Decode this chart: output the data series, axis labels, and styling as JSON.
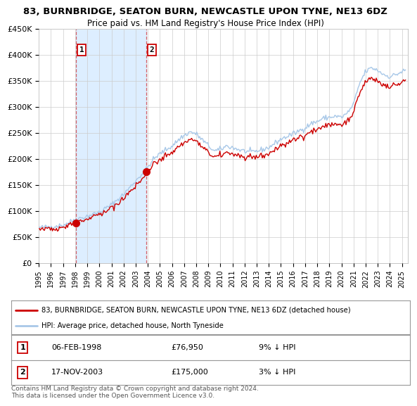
{
  "title": "83, BURNBRIDGE, SEATON BURN, NEWCASTLE UPON TYNE, NE13 6DZ",
  "subtitle": "Price paid vs. HM Land Registry's House Price Index (HPI)",
  "xlim_start": 1995.0,
  "xlim_end": 2025.5,
  "ylim_min": 0,
  "ylim_max": 450000,
  "yticks": [
    0,
    50000,
    100000,
    150000,
    200000,
    250000,
    300000,
    350000,
    400000,
    450000
  ],
  "ytick_labels": [
    "£0",
    "£50K",
    "£100K",
    "£150K",
    "£200K",
    "£250K",
    "£300K",
    "£350K",
    "£400K",
    "£450K"
  ],
  "xtick_labels": [
    "1995",
    "1996",
    "1997",
    "1998",
    "1999",
    "2000",
    "2001",
    "2002",
    "2003",
    "2004",
    "2005",
    "2006",
    "2007",
    "2008",
    "2009",
    "2010",
    "2011",
    "2012",
    "2013",
    "2014",
    "2015",
    "2016",
    "2017",
    "2018",
    "2019",
    "2020",
    "2021",
    "2022",
    "2023",
    "2024",
    "2025"
  ],
  "hpi_color": "#a8c8e8",
  "price_color": "#cc0000",
  "bg_color": "#ffffff",
  "grid_color": "#cccccc",
  "shade_color": "#ddeeff",
  "marker_color": "#cc0000",
  "purchase1_date": 1998.09,
  "purchase1_price": 76950,
  "purchase1_label": "1",
  "purchase2_date": 2003.88,
  "purchase2_price": 175000,
  "purchase2_label": "2",
  "legend_line1": "83, BURNBRIDGE, SEATON BURN, NEWCASTLE UPON TYNE, NE13 6DZ (detached house)",
  "legend_line2": "HPI: Average price, detached house, North Tyneside",
  "table_row1_num": "1",
  "table_row1_date": "06-FEB-1998",
  "table_row1_price": "£76,950",
  "table_row1_hpi": "9% ↓ HPI",
  "table_row2_num": "2",
  "table_row2_date": "17-NOV-2003",
  "table_row2_price": "£175,000",
  "table_row2_hpi": "3% ↓ HPI",
  "footer": "Contains HM Land Registry data © Crown copyright and database right 2024.\nThis data is licensed under the Open Government Licence v3.0."
}
